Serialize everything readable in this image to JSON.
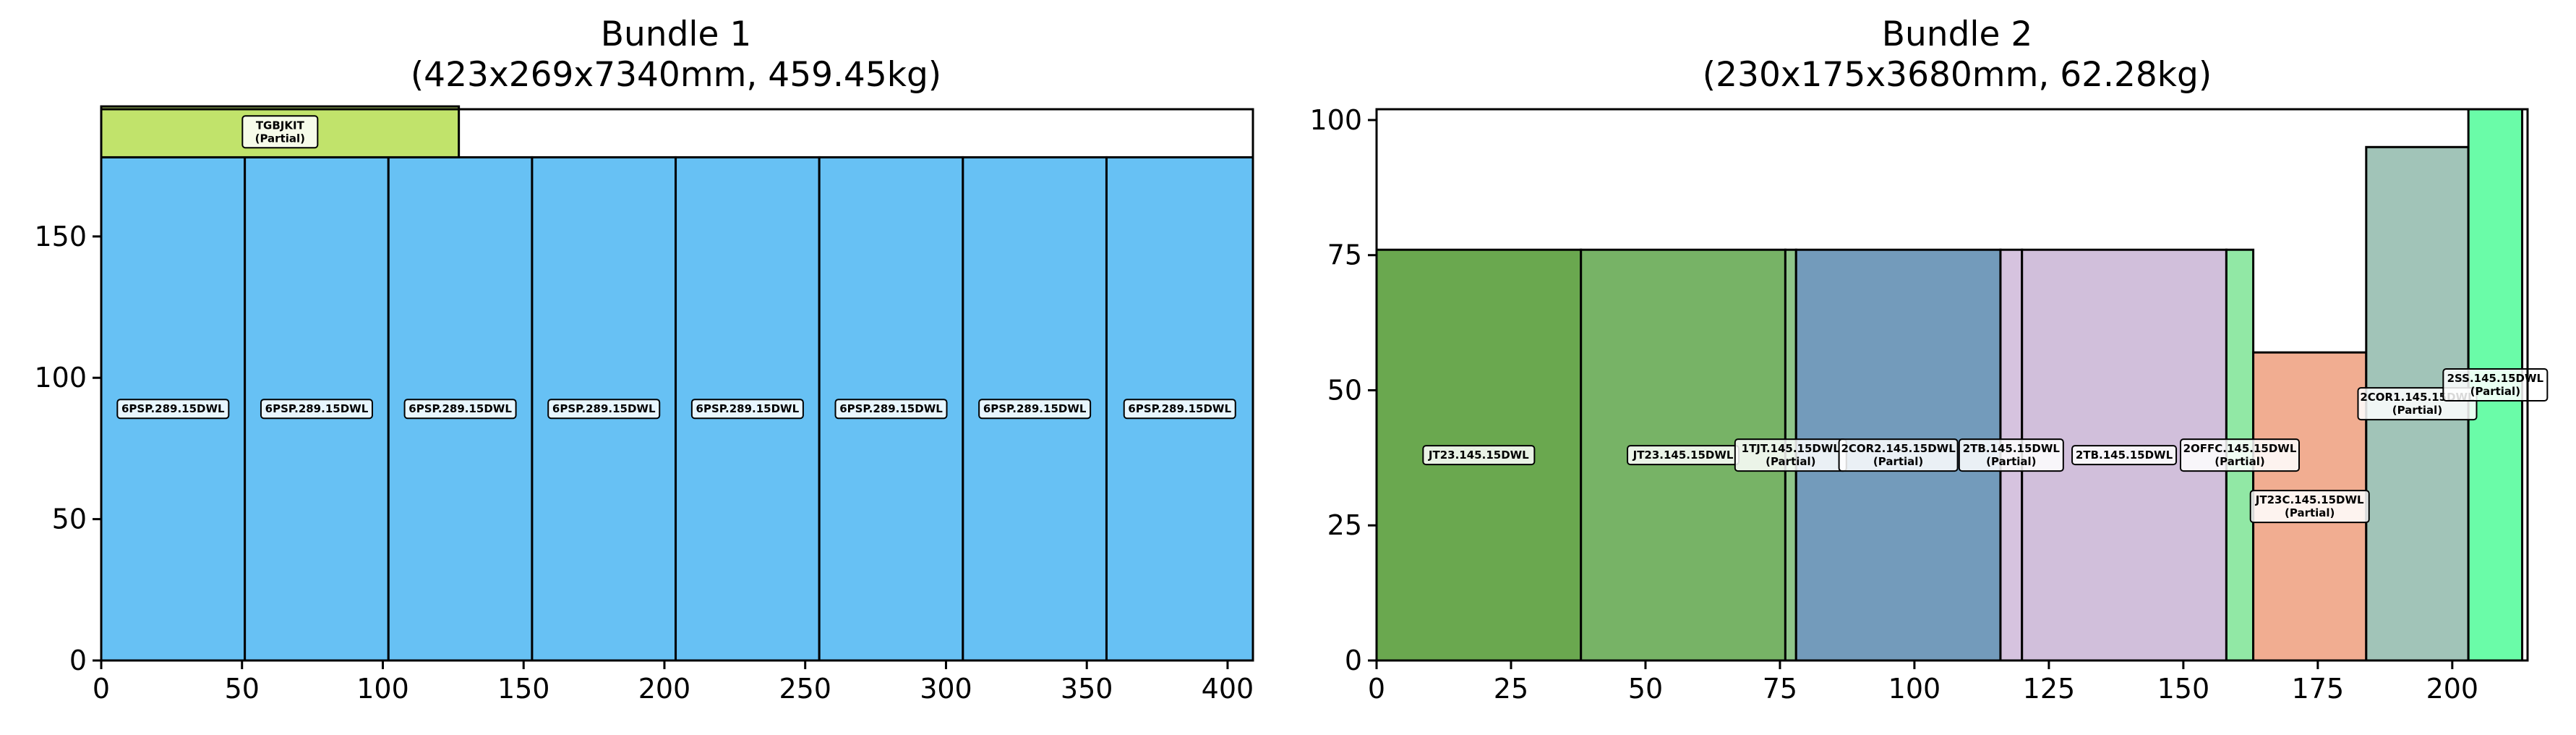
{
  "chart_data": [
    {
      "type": "bar",
      "title": "Bundle 1",
      "subtitle": "(423x269x7340mm, 459.45kg)",
      "xlim": [
        0,
        409
      ],
      "ylim": [
        0,
        195
      ],
      "xticks": [
        0,
        50,
        100,
        150,
        200,
        250,
        300,
        350,
        400
      ],
      "yticks": [
        0,
        50,
        100,
        150
      ],
      "items": [
        {
          "label": "6PSP.289.15DWL",
          "x": 0,
          "w": 51,
          "h": 178,
          "color": "#67c1f4"
        },
        {
          "label": "6PSP.289.15DWL",
          "x": 51,
          "w": 51,
          "h": 178,
          "color": "#67c1f4"
        },
        {
          "label": "6PSP.289.15DWL",
          "x": 102,
          "w": 51,
          "h": 178,
          "color": "#67c1f4"
        },
        {
          "label": "6PSP.289.15DWL",
          "x": 153,
          "w": 51,
          "h": 178,
          "color": "#67c1f4"
        },
        {
          "label": "6PSP.289.15DWL",
          "x": 204,
          "w": 51,
          "h": 178,
          "color": "#67c1f4"
        },
        {
          "label": "6PSP.289.15DWL",
          "x": 255,
          "w": 51,
          "h": 178,
          "color": "#67c1f4"
        },
        {
          "label": "6PSP.289.15DWL",
          "x": 306,
          "w": 51,
          "h": 178,
          "color": "#67c1f4"
        },
        {
          "label": "6PSP.289.15DWL",
          "x": 357,
          "w": 52,
          "h": 178,
          "color": "#67c1f4"
        },
        {
          "label": "TGBJKIT",
          "sub": "(Partial)",
          "x": 0,
          "y0": 178,
          "w": 127,
          "h": 18,
          "color": "#c1e36b"
        }
      ]
    },
    {
      "type": "bar",
      "title": "Bundle 2",
      "subtitle": "(230x175x3680mm, 62.28kg)",
      "xlim": [
        0,
        214
      ],
      "ylim": [
        0,
        102
      ],
      "xticks": [
        0,
        25,
        50,
        75,
        100,
        125,
        150,
        175,
        200
      ],
      "yticks": [
        0,
        25,
        50,
        75,
        100
      ],
      "items": [
        {
          "label": "JT23.145.15DWL",
          "x": 0,
          "w": 38,
          "h": 76,
          "color": "#6aa84f"
        },
        {
          "label": "JT23.145.15DWL",
          "x": 38,
          "w": 38,
          "h": 76,
          "color": "#77b366"
        },
        {
          "label": "1TJT.145.15DWL",
          "sub": "(Partial)",
          "x": 76,
          "w": 2,
          "h": 76,
          "color": "#8fc58a"
        },
        {
          "label": "2COR2.145.15DWL",
          "sub": "(Partial)",
          "x": 78,
          "w": 38,
          "h": 76,
          "color": "#739bbb"
        },
        {
          "label": "2TB.145.15DWL",
          "sub": "(Partial)",
          "x": 116,
          "w": 4,
          "h": 76,
          "color": "#d6c3df"
        },
        {
          "label": "2TB.145.15DWL",
          "x": 120,
          "w": 38,
          "h": 76,
          "color": "#d1bfdb"
        },
        {
          "label": "2OFFC.145.15DWL",
          "sub": "(Partial)",
          "x": 158,
          "w": 5,
          "h": 76,
          "color": "#91e8a5"
        },
        {
          "label": "JT23C.145.15DWL",
          "sub": "(Partial)",
          "x": 163,
          "w": 21,
          "h": 57,
          "color": "#f1ad91"
        },
        {
          "label": "2COR1.145.15DWL",
          "sub": "(Partial)",
          "x": 184,
          "w": 19,
          "h": 95,
          "color": "#a1c4b8"
        },
        {
          "label": "2SS.145.15DWL",
          "sub": "(Partial)",
          "x": 203,
          "w": 10,
          "h": 102,
          "color": "#6afca8"
        }
      ]
    }
  ]
}
